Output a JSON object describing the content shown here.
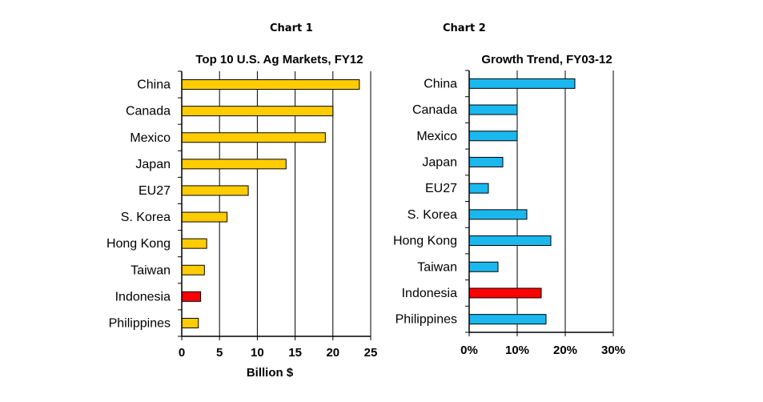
{
  "chart_data": [
    {
      "type": "bar",
      "orientation": "horizontal",
      "panel_label": "Chart 1",
      "title": "Top 10 U.S. Ag Markets, FY12",
      "xlabel": "Billion $",
      "ylabel": "",
      "categories": [
        "China",
        "Canada",
        "Mexico",
        "Japan",
        "EU27",
        "S. Korea",
        "Hong Kong",
        "Taiwan",
        "Indonesia",
        "Philippines"
      ],
      "values": [
        23.5,
        20.0,
        19.0,
        13.8,
        8.8,
        6.0,
        3.3,
        3.0,
        2.5,
        2.2
      ],
      "xlim": [
        0,
        25
      ],
      "ticks": [
        "0",
        "5",
        "10",
        "15",
        "20",
        "25"
      ],
      "tick_values": [
        0,
        5,
        10,
        15,
        20,
        25
      ],
      "grid": true,
      "bar_color": "#ffcc00",
      "highlight_category": "Indonesia",
      "highlight_color": "#ff0000"
    },
    {
      "type": "bar",
      "orientation": "horizontal",
      "panel_label": "Chart 2",
      "title": "Growth Trend, FY03-12",
      "xlabel": "",
      "ylabel": "",
      "categories": [
        "China",
        "Canada",
        "Mexico",
        "Japan",
        "EU27",
        "S. Korea",
        "Hong Kong",
        "Taiwan",
        "Indonesia",
        "Philippines"
      ],
      "values": [
        22,
        10,
        10,
        7,
        4,
        12,
        17,
        6,
        15,
        16
      ],
      "xlim": [
        0,
        30
      ],
      "ticks": [
        "0%",
        "10%",
        "20%",
        "30%"
      ],
      "tick_values": [
        0,
        10,
        20,
        30
      ],
      "grid": true,
      "bar_color": "#1ab8ee",
      "highlight_category": "Indonesia",
      "highlight_color": "#ff0000"
    }
  ]
}
